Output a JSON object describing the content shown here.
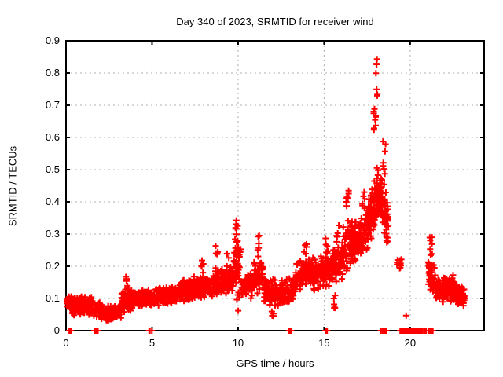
{
  "chart_data": {
    "type": "scatter",
    "title": "Day 340 of 2023, SRMTID for receiver wind",
    "xlabel": "GPS time / hours",
    "ylabel": "SRMTID / TECUs",
    "xlim": [
      0,
      24.3
    ],
    "ylim": [
      0,
      0.9
    ],
    "xticks": [
      {
        "v": 0,
        "label": "0"
      },
      {
        "v": 5,
        "label": "5"
      },
      {
        "v": 10,
        "label": "10"
      },
      {
        "v": 15,
        "label": "15"
      },
      {
        "v": 20,
        "label": "20"
      }
    ],
    "yticks": [
      {
        "v": 0.0,
        "label": "0"
      },
      {
        "v": 0.1,
        "label": "0.1"
      },
      {
        "v": 0.2,
        "label": "0.2"
      },
      {
        "v": 0.3,
        "label": "0.3"
      },
      {
        "v": 0.4,
        "label": "0.4"
      },
      {
        "v": 0.5,
        "label": "0.5"
      },
      {
        "v": 0.6,
        "label": "0.6"
      },
      {
        "v": 0.7,
        "label": "0.7"
      },
      {
        "v": 0.8,
        "label": "0.8"
      },
      {
        "v": 0.9,
        "label": "0.9"
      }
    ],
    "grid": true,
    "grid_color": "#b0b0b0",
    "border_color": "#000000",
    "background": "#ffffff",
    "marker": "plus",
    "marker_color": "#ff0000",
    "peak": {
      "x": 18.0,
      "y": 0.86
    },
    "point_cloud": {
      "seed": 1337,
      "bands_format": "x_start,x_end,center_start,center_end,half_spread,count",
      "bands": [
        [
          0.05,
          0.35,
          0.09,
          0.09,
          0.025,
          40
        ],
        [
          0.35,
          1.55,
          0.078,
          0.078,
          0.034,
          150
        ],
        [
          1.6,
          2.25,
          0.068,
          0.055,
          0.028,
          55
        ],
        [
          2.25,
          3.2,
          0.052,
          0.06,
          0.025,
          130
        ],
        [
          3.2,
          4.3,
          0.09,
          0.1,
          0.035,
          130
        ],
        [
          4.3,
          5.1,
          0.1,
          0.1,
          0.03,
          90
        ],
        [
          5.1,
          6.6,
          0.105,
          0.115,
          0.032,
          160
        ],
        [
          6.6,
          8.6,
          0.125,
          0.14,
          0.038,
          220
        ],
        [
          8.6,
          9.75,
          0.145,
          0.165,
          0.045,
          120
        ],
        [
          9.75,
          10.2,
          0.21,
          0.21,
          0.08,
          55
        ],
        [
          10.2,
          10.85,
          0.135,
          0.14,
          0.04,
          70
        ],
        [
          10.85,
          11.5,
          0.17,
          0.17,
          0.055,
          70
        ],
        [
          11.5,
          12.35,
          0.125,
          0.115,
          0.045,
          90
        ],
        [
          12.35,
          13.35,
          0.115,
          0.135,
          0.045,
          90
        ],
        [
          13.35,
          14.35,
          0.17,
          0.185,
          0.05,
          110
        ],
        [
          14.35,
          15.35,
          0.175,
          0.19,
          0.055,
          110
        ],
        [
          15.35,
          16.1,
          0.2,
          0.22,
          0.06,
          90
        ],
        [
          16.1,
          16.7,
          0.25,
          0.28,
          0.08,
          70
        ],
        [
          16.7,
          17.55,
          0.27,
          0.31,
          0.075,
          100
        ],
        [
          17.55,
          18.05,
          0.34,
          0.4,
          0.09,
          80
        ],
        [
          18.05,
          18.4,
          0.44,
          0.42,
          0.1,
          60
        ],
        [
          18.4,
          18.75,
          0.38,
          0.34,
          0.09,
          50
        ],
        [
          19.2,
          19.5,
          0.21,
          0.21,
          0.022,
          12
        ],
        [
          21.05,
          21.5,
          0.18,
          0.15,
          0.055,
          45
        ],
        [
          21.5,
          22.6,
          0.13,
          0.13,
          0.045,
          120
        ],
        [
          22.6,
          23.2,
          0.12,
          0.105,
          0.035,
          60
        ]
      ],
      "spikes_format": "x,y_low,y_high,count",
      "spikes": [
        [
          3.5,
          0.12,
          0.17,
          6
        ],
        [
          7.9,
          0.17,
          0.22,
          5
        ],
        [
          8.75,
          0.19,
          0.27,
          6
        ],
        [
          9.4,
          0.2,
          0.26,
          4
        ],
        [
          9.9,
          0.27,
          0.35,
          9
        ],
        [
          10.0,
          0.04,
          0.12,
          5
        ],
        [
          11.15,
          0.23,
          0.3,
          6
        ],
        [
          12.0,
          0.04,
          0.07,
          4
        ],
        [
          13.9,
          0.23,
          0.28,
          5
        ],
        [
          15.15,
          0.24,
          0.31,
          6
        ],
        [
          15.6,
          0.05,
          0.11,
          6
        ],
        [
          15.8,
          0.27,
          0.33,
          5
        ],
        [
          16.35,
          0.34,
          0.47,
          9
        ],
        [
          17.3,
          0.37,
          0.44,
          6
        ],
        [
          17.95,
          0.55,
          0.7,
          9
        ],
        [
          18.02,
          0.7,
          0.86,
          7
        ],
        [
          18.5,
          0.48,
          0.6,
          7
        ],
        [
          19.7,
          0.04,
          0.05,
          1
        ],
        [
          21.2,
          0.21,
          0.3,
          7
        ]
      ],
      "zero_runs_format": "x_start,x_end,count (points at y=0)",
      "zero_runs": [
        [
          0.13,
          0.3,
          4
        ],
        [
          1.62,
          1.85,
          10
        ],
        [
          4.82,
          5.0,
          5
        ],
        [
          12.95,
          13.1,
          5
        ],
        [
          15.08,
          15.22,
          5
        ],
        [
          18.28,
          18.45,
          5
        ],
        [
          18.5,
          18.62,
          3
        ],
        [
          19.42,
          19.58,
          5
        ],
        [
          19.65,
          21.1,
          70
        ],
        [
          21.12,
          21.35,
          8
        ]
      ]
    }
  }
}
